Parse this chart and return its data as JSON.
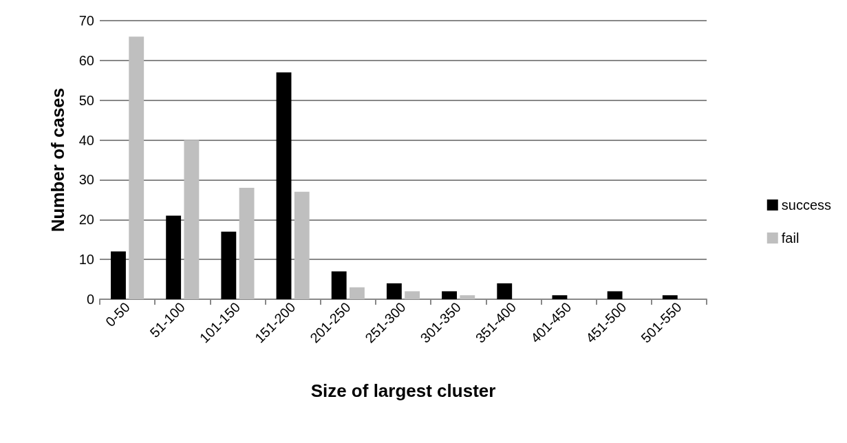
{
  "chart_data": {
    "type": "bar",
    "xlabel": "Size of largest cluster",
    "ylabel": "Number of cases",
    "categories": [
      "0-50",
      "51-100",
      "101-150",
      "151-200",
      "201-250",
      "251-300",
      "301-350",
      "351-400",
      "401-450",
      "451-500",
      "501-550"
    ],
    "series": [
      {
        "name": "success",
        "color": "#000000",
        "values": [
          12,
          21,
          17,
          57,
          7,
          4,
          2,
          4,
          1,
          2,
          1
        ]
      },
      {
        "name": "fail",
        "color": "#bfbfbf",
        "values": [
          66,
          40,
          28,
          27,
          3,
          2,
          1,
          null,
          null,
          null,
          null
        ]
      }
    ],
    "ylim": [
      0,
      70
    ],
    "yticks": [
      0,
      10,
      20,
      30,
      40,
      50,
      60,
      70
    ],
    "grid": "y",
    "legend": "right"
  }
}
